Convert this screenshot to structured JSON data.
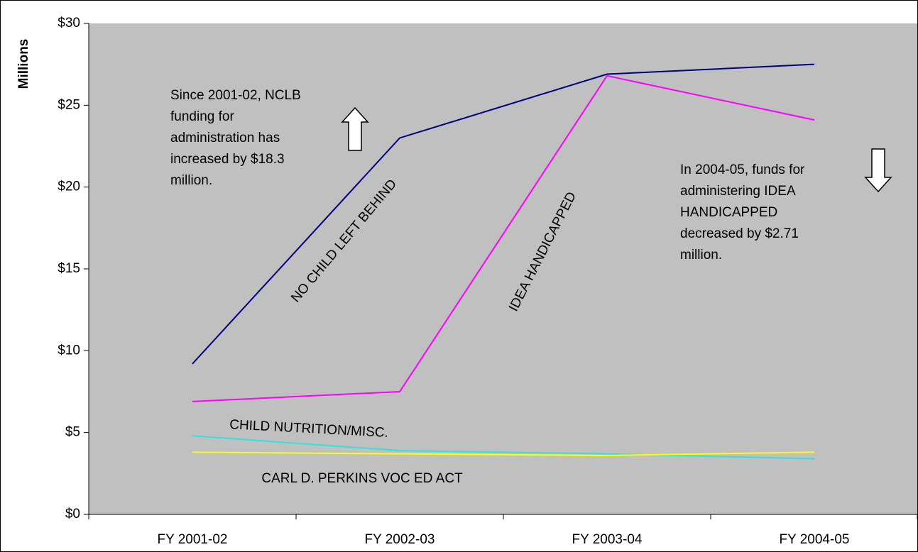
{
  "chart_data": {
    "type": "line",
    "y_axis_label": "Millions",
    "categories": [
      "FY 2001-02",
      "FY 2002-03",
      "FY 2003-04",
      "FY 2004-05"
    ],
    "series": [
      {
        "name": "NO CHILD LEFT BEHIND",
        "color": "#000080",
        "values": [
          9.2,
          23.0,
          26.9,
          27.5
        ]
      },
      {
        "name": "IDEA HANDICAPPED",
        "color": "#ff00ff",
        "values": [
          6.9,
          7.5,
          26.8,
          24.1
        ]
      },
      {
        "name": "CHILD NUTRITION/MISC.",
        "color": "#33e0e0",
        "values": [
          4.8,
          3.9,
          3.7,
          3.4
        ]
      },
      {
        "name": "CARL D. PERKINS VOC ED ACT",
        "color": "#ffff00",
        "values": [
          3.8,
          3.7,
          3.6,
          3.8
        ]
      }
    ],
    "ylim": [
      0,
      30
    ],
    "yticks": [
      {
        "value": 0,
        "label": "$0"
      },
      {
        "value": 5,
        "label": "$5"
      },
      {
        "value": 10,
        "label": "$10"
      },
      {
        "value": 15,
        "label": "$15"
      },
      {
        "value": 20,
        "label": "$20"
      },
      {
        "value": 25,
        "label": "$25"
      },
      {
        "value": 30,
        "label": "$30"
      }
    ],
    "annotations": [
      [
        "Since 2001-02, NCLB",
        "funding for",
        "administration has",
        "increased by $18.3",
        "million."
      ],
      [
        "In 2004-05, funds for",
        "administering IDEA",
        "HANDICAPPED",
        "decreased by $2.71",
        "million."
      ]
    ]
  }
}
